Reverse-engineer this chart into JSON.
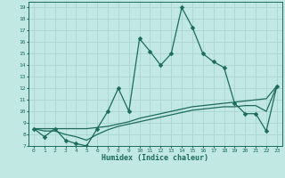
{
  "title": "",
  "xlabel": "Humidex (Indice chaleur)",
  "ylabel": "",
  "bg_color": "#c2e8e4",
  "line_color": "#1a6b5a",
  "grid_color": "#aad4d0",
  "xlim": [
    -0.5,
    23.5
  ],
  "ylim": [
    7,
    19.5
  ],
  "xticks": [
    0,
    1,
    2,
    3,
    4,
    5,
    6,
    7,
    8,
    9,
    10,
    11,
    12,
    13,
    14,
    15,
    16,
    17,
    18,
    19,
    20,
    21,
    22,
    23
  ],
  "yticks": [
    7,
    8,
    9,
    10,
    11,
    12,
    13,
    14,
    15,
    16,
    17,
    18,
    19
  ],
  "line1_x": [
    0,
    1,
    2,
    3,
    4,
    5,
    6,
    7,
    8,
    9,
    10,
    11,
    12,
    13,
    14,
    15,
    16,
    17,
    18,
    19,
    20,
    21,
    22,
    23
  ],
  "line1_y": [
    8.5,
    7.8,
    8.5,
    7.5,
    7.2,
    7.0,
    8.5,
    10.0,
    12.0,
    10.0,
    16.3,
    15.2,
    14.0,
    15.0,
    19.0,
    17.3,
    15.0,
    14.3,
    13.8,
    10.7,
    9.8,
    9.8,
    8.3,
    12.2
  ],
  "line2_x": [
    0,
    1,
    2,
    3,
    4,
    5,
    6,
    7,
    8,
    9,
    10,
    11,
    12,
    13,
    14,
    15,
    16,
    17,
    18,
    19,
    20,
    21,
    22,
    23
  ],
  "line2_y": [
    8.5,
    8.5,
    8.5,
    8.5,
    8.5,
    8.5,
    8.6,
    8.7,
    8.9,
    9.1,
    9.4,
    9.6,
    9.8,
    10.0,
    10.2,
    10.4,
    10.5,
    10.6,
    10.7,
    10.8,
    10.9,
    11.0,
    11.1,
    12.2
  ],
  "line3_x": [
    0,
    1,
    2,
    3,
    4,
    5,
    6,
    7,
    8,
    9,
    10,
    11,
    12,
    13,
    14,
    15,
    16,
    17,
    18,
    19,
    20,
    21,
    22,
    23
  ],
  "line3_y": [
    8.5,
    8.3,
    8.3,
    8.0,
    7.8,
    7.5,
    8.0,
    8.4,
    8.7,
    8.9,
    9.1,
    9.3,
    9.5,
    9.7,
    9.9,
    10.1,
    10.2,
    10.3,
    10.4,
    10.4,
    10.5,
    10.5,
    10.0,
    12.2
  ],
  "marker_size": 2.5,
  "linewidth": 0.9
}
